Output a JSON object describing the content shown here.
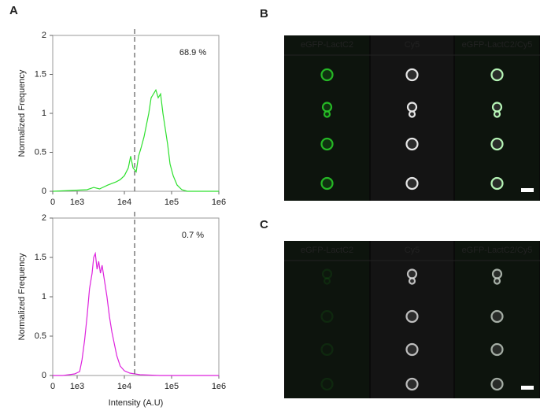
{
  "chart_data": [
    {
      "type": "line",
      "color": "#2ee02e",
      "xscale": "biexponential",
      "x": [
        0,
        1620,
        2240,
        2980,
        4460,
        6650,
        8160,
        10000,
        12100,
        13600,
        15250,
        17800,
        19950,
        22400,
        26100,
        29300,
        32900,
        36800,
        41400,
        46400,
        52100,
        58500,
        65600,
        73600,
        82500,
        92600,
        108000,
        131000,
        165000,
        215000,
        1000000
      ],
      "values": [
        0,
        0.02,
        0.05,
        0.03,
        0.08,
        0.12,
        0.15,
        0.2,
        0.3,
        0.45,
        0.3,
        0.25,
        0.45,
        0.55,
        0.7,
        0.85,
        1.0,
        1.2,
        1.25,
        1.3,
        1.2,
        1.25,
        1.0,
        0.8,
        0.6,
        0.35,
        0.2,
        0.08,
        0.02,
        0,
        0
      ],
      "xlim": [
        0,
        1000000
      ],
      "xticks": [
        0,
        {
          "value": 1000,
          "label": "1e3"
        },
        {
          "value": 10000,
          "label": "1e4"
        },
        {
          "value": 100000,
          "label": "1e5"
        },
        {
          "value": 1000000,
          "label": "1e6"
        }
      ],
      "ylim": [
        0,
        2
      ],
      "yticks": [
        0,
        0.5,
        1,
        1.5,
        2
      ],
      "y_label": "Normalized Frequency",
      "annotation": "68.9 %",
      "threshold": 16500
    },
    {
      "type": "line",
      "color": "#dd22dd",
      "xscale": "biexponential",
      "x": [
        0,
        420,
        900,
        1130,
        1270,
        1440,
        1620,
        1830,
        2070,
        2240,
        2430,
        2640,
        2860,
        3110,
        3370,
        3800,
        4290,
        4830,
        5450,
        6150,
        6930,
        8160,
        10000,
        13100,
        21500,
        56200,
        1000000
      ],
      "values": [
        0,
        0,
        0.02,
        0.05,
        0.2,
        0.45,
        0.75,
        1.1,
        1.3,
        1.5,
        1.55,
        1.35,
        1.45,
        1.3,
        1.4,
        1.2,
        1.0,
        0.75,
        0.55,
        0.4,
        0.25,
        0.12,
        0.06,
        0.03,
        0.01,
        0,
        0
      ],
      "xlim": [
        0,
        1000000
      ],
      "xticks": [
        0,
        {
          "value": 1000,
          "label": "1e3"
        },
        {
          "value": 10000,
          "label": "1e4"
        },
        {
          "value": 100000,
          "label": "1e5"
        },
        {
          "value": 1000000,
          "label": "1e6"
        }
      ],
      "ylim": [
        0,
        2
      ],
      "yticks": [
        0,
        0.5,
        1,
        1.5,
        2
      ],
      "y_label": "Normalized Frequency",
      "x_label": "Intensity (A.U)",
      "annotation": "0.7 %",
      "threshold": 16500
    }
  ],
  "panel_a": {
    "label": "A"
  },
  "panel_b": {
    "label": "B",
    "columns": [
      "eGFP-LactC2",
      "Cy5",
      "eGFP-LactC2/Cy5"
    ]
  },
  "panel_c": {
    "label": "C",
    "columns": [
      "eGFP-LactC2",
      "Cy5",
      "eGFP-LactC2/Cy5"
    ]
  }
}
